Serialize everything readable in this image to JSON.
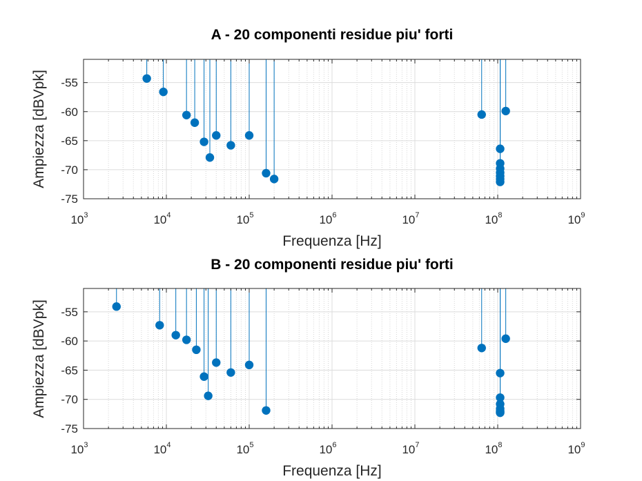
{
  "figure": {
    "background": "#ffffff"
  },
  "chart_data": [
    {
      "type": "stem",
      "title": "A - 20 componenti residue piu' forti",
      "xlabel": "Frequenza [Hz]",
      "ylabel": "Ampiezza [dBVpk]",
      "xscale": "log",
      "xlim": [
        1000,
        1000000000
      ],
      "ylim": [
        -75,
        -51
      ],
      "xticks": [
        1000,
        10000,
        100000,
        1000000,
        10000000,
        100000000,
        1000000000
      ],
      "xtick_labels": [
        {
          "base": "10",
          "exp": "3"
        },
        {
          "base": "10",
          "exp": "4"
        },
        {
          "base": "10",
          "exp": "5"
        },
        {
          "base": "10",
          "exp": "6"
        },
        {
          "base": "10",
          "exp": "7"
        },
        {
          "base": "10",
          "exp": "8"
        },
        {
          "base": "10",
          "exp": "9"
        }
      ],
      "yticks": [
        -55,
        -60,
        -65,
        -70,
        -75
      ],
      "ytick_labels": [
        "-55",
        "-60",
        "-65",
        "-70",
        "-75"
      ],
      "grid": true,
      "stem_color": "#0072bd",
      "series": [
        {
          "x": [
            5800,
            9200,
            17500,
            22000,
            28500,
            33500,
            40000,
            60000,
            100000,
            160000,
            200000,
            64000000,
            107000000,
            107000000,
            107000000,
            107000000,
            107000000,
            107000000,
            107000000,
            125000000
          ],
          "y": [
            -54.3,
            -56.6,
            -60.6,
            -61.9,
            -65.2,
            -67.9,
            -64.1,
            -65.8,
            -64.1,
            -70.6,
            -71.6,
            -60.5,
            -66.4,
            -68.9,
            -69.8,
            -70.5,
            -71.1,
            -71.6,
            -72.1,
            -59.9
          ]
        }
      ]
    },
    {
      "type": "stem",
      "title": "B - 20 componenti residue piu' forti",
      "xlabel": "Frequenza [Hz]",
      "ylabel": "Ampiezza [dBVpk]",
      "xscale": "log",
      "xlim": [
        1000,
        1000000000
      ],
      "ylim": [
        -75,
        -51
      ],
      "xticks": [
        1000,
        10000,
        100000,
        1000000,
        10000000,
        100000000,
        1000000000
      ],
      "xtick_labels": [
        {
          "base": "10",
          "exp": "3"
        },
        {
          "base": "10",
          "exp": "4"
        },
        {
          "base": "10",
          "exp": "5"
        },
        {
          "base": "10",
          "exp": "6"
        },
        {
          "base": "10",
          "exp": "7"
        },
        {
          "base": "10",
          "exp": "8"
        },
        {
          "base": "10",
          "exp": "9"
        }
      ],
      "yticks": [
        -55,
        -60,
        -65,
        -70,
        -75
      ],
      "ytick_labels": [
        "-55",
        "-60",
        "-65",
        "-70",
        "-75"
      ],
      "grid": true,
      "stem_color": "#0072bd",
      "series": [
        {
          "x": [
            2500,
            8300,
            13000,
            17500,
            23000,
            28500,
            32000,
            40000,
            60000,
            100000,
            160000,
            64000000,
            107000000,
            107000000,
            107000000,
            107000000,
            107000000,
            107000000,
            107000000,
            125000000
          ],
          "y": [
            -54.1,
            -57.3,
            -59.0,
            -59.8,
            -61.5,
            -66.1,
            -69.4,
            -63.7,
            -65.4,
            -64.1,
            -71.9,
            -61.2,
            -65.5,
            -69.7,
            -70.8,
            -71.6,
            -72.0,
            -72.2,
            -72.3,
            -59.6
          ]
        }
      ]
    }
  ]
}
